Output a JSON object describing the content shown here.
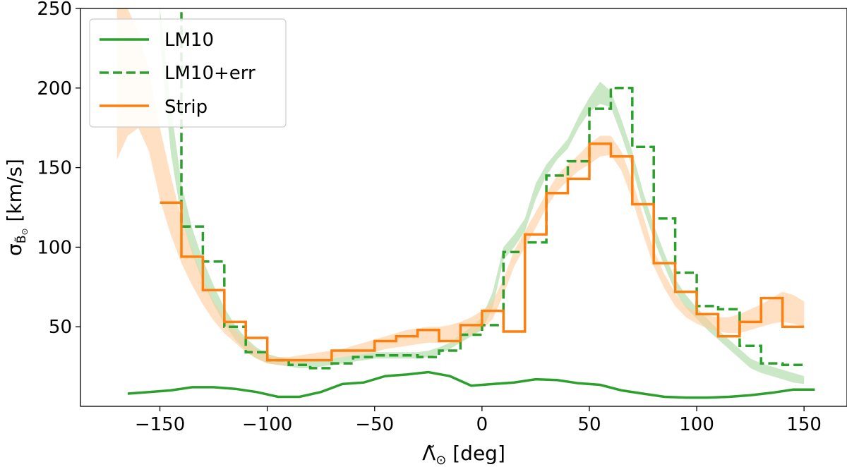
{
  "chart_data": {
    "type": "line",
    "xlabel": "Λ̃",
    "xlabel_sub": "⊙",
    "xlabel_unit": " [deg]",
    "ylabel": "σ",
    "ylabel_sub": "B̃",
    "ylabel_subsub": "⊙",
    "ylabel_unit": " [km/s]",
    "xlim": [
      -187,
      170
    ],
    "ylim": [
      0,
      250
    ],
    "xticks": [
      -150,
      -100,
      -50,
      0,
      50,
      100,
      150
    ],
    "xtick_labels": [
      "−150",
      "−100",
      "−50",
      "0",
      "50",
      "100",
      "150"
    ],
    "yticks": [
      50,
      100,
      150,
      200,
      250
    ],
    "ytick_labels": [
      "50",
      "100",
      "150",
      "200",
      "250"
    ],
    "legend_position": "top-left",
    "legend": [
      {
        "label": "LM10",
        "color": "#2ca02c",
        "style": "solid"
      },
      {
        "label": "LM10+err",
        "color": "#2ca02c",
        "style": "dashed"
      },
      {
        "label": "Strip",
        "color": "#ff7f0e",
        "style": "solid"
      }
    ],
    "colors": {
      "green": "#2ca02c",
      "orange": "#ff7f0e",
      "green_band": "#a8d8a0",
      "orange_band": "#ffcc99"
    },
    "series": [
      {
        "name": "LM10",
        "kind": "line",
        "x": [
          -165,
          -155,
          -145,
          -135,
          -125,
          -115,
          -105,
          -95,
          -85,
          -75,
          -65,
          -55,
          -45,
          -35,
          -25,
          -15,
          -5,
          5,
          15,
          25,
          35,
          45,
          55,
          65,
          75,
          85,
          95,
          105,
          115,
          125,
          135,
          145,
          155
        ],
        "y": [
          8,
          9,
          10,
          12,
          12,
          11,
          9,
          6,
          6,
          9,
          14,
          15,
          19,
          20,
          21.5,
          19,
          13,
          14,
          15,
          17,
          16.5,
          14.5,
          13.5,
          10,
          8,
          6,
          5.5,
          5.5,
          6,
          7,
          8.5,
          10.5,
          10.5
        ]
      },
      {
        "name": "LM10+err",
        "kind": "step",
        "edges": [
          -150,
          -140,
          -130,
          -120,
          -110,
          -100,
          -90,
          -80,
          -70,
          -60,
          -50,
          -40,
          -30,
          -20,
          -10,
          0,
          10,
          20,
          30,
          40,
          50,
          60,
          70,
          80,
          90,
          100,
          110,
          120,
          130,
          140,
          150
        ],
        "values": [
          251,
          113,
          91,
          50,
          34,
          29,
          26,
          24,
          27,
          31,
          32,
          32,
          31,
          35,
          45,
          51,
          97,
          103,
          145,
          154,
          187,
          200,
          163,
          118,
          84,
          63,
          61,
          38,
          27,
          26
        ]
      },
      {
        "name": "Strip",
        "kind": "step",
        "edges": [
          -150,
          -140,
          -130,
          -120,
          -110,
          -100,
          -90,
          -80,
          -70,
          -60,
          -50,
          -40,
          -30,
          -20,
          -10,
          0,
          10,
          20,
          30,
          40,
          50,
          60,
          70,
          80,
          90,
          100,
          110,
          120,
          130,
          140,
          150
        ],
        "values": [
          128,
          94,
          73,
          53,
          43,
          29,
          29,
          29,
          35,
          35,
          41,
          44,
          48,
          41,
          51,
          60,
          47,
          108,
          134,
          143,
          165,
          157,
          127,
          90,
          72,
          58,
          44,
          53,
          68,
          50
        ]
      }
    ],
    "bands": [
      {
        "name": "LM10+err model band",
        "color": "#a8d8a0",
        "x": [
          -150,
          -145,
          -140,
          -135,
          -130,
          -125,
          -120,
          -115,
          -110,
          -105,
          -100,
          -95,
          -90,
          -85,
          -80,
          -75,
          -70,
          -65,
          -60,
          -55,
          -50,
          -45,
          -40,
          -35,
          -30,
          -25,
          -20,
          -15,
          -10,
          -5,
          0,
          5,
          10,
          15,
          20,
          25,
          30,
          35,
          40,
          45,
          50,
          55,
          60,
          65,
          70,
          75,
          80,
          85,
          90,
          95,
          100,
          105,
          110,
          115,
          120,
          125,
          130,
          135,
          140,
          145,
          150
        ],
        "lo": [
          230,
          160,
          118,
          96,
          78,
          64,
          52,
          42,
          35,
          30,
          27,
          26,
          25,
          24,
          24,
          25,
          26,
          27,
          28,
          29,
          30,
          30,
          30,
          30,
          30,
          31,
          33,
          36,
          40,
          44,
          48,
          62,
          92,
          100,
          110,
          130,
          145,
          155,
          162,
          175,
          185,
          190,
          188,
          170,
          150,
          125,
          105,
          88,
          72,
          62,
          55,
          48,
          42,
          36,
          30,
          24,
          21,
          19,
          17,
          15,
          14
        ],
        "hi": [
          250,
          190,
          140,
          112,
          92,
          76,
          62,
          51,
          43,
          37,
          33,
          31,
          30,
          29,
          29,
          29,
          30,
          31,
          32,
          33,
          34,
          34,
          34,
          34,
          34,
          35,
          37,
          40,
          45,
          50,
          56,
          72,
          100,
          108,
          118,
          140,
          152,
          160,
          168,
          182,
          194,
          204,
          198,
          180,
          160,
          135,
          114,
          96,
          80,
          70,
          62,
          55,
          48,
          42,
          36,
          30,
          27,
          25,
          23,
          21,
          19
        ]
      },
      {
        "name": "Strip model band",
        "color": "#ffcc99",
        "x": [
          -170,
          -165,
          -160,
          -155,
          -150,
          -145,
          -140,
          -135,
          -130,
          -125,
          -120,
          -115,
          -110,
          -105,
          -100,
          -95,
          -90,
          -85,
          -80,
          -75,
          -70,
          -65,
          -60,
          -55,
          -50,
          -45,
          -40,
          -35,
          -30,
          -25,
          -20,
          -15,
          -10,
          -5,
          0,
          5,
          10,
          15,
          20,
          25,
          30,
          35,
          40,
          45,
          50,
          55,
          60,
          65,
          70,
          75,
          80,
          85,
          90,
          95,
          100,
          105,
          110,
          115,
          120,
          125,
          130,
          135,
          140,
          145,
          150
        ],
        "lo": [
          155,
          170,
          175,
          160,
          130,
          108,
          90,
          76,
          64,
          54,
          46,
          40,
          34,
          30,
          27,
          26,
          26,
          27,
          28,
          29,
          30,
          31,
          32,
          33,
          34,
          36,
          37,
          38,
          39,
          40,
          40,
          41,
          43,
          45,
          48,
          55,
          70,
          88,
          100,
          112,
          125,
          135,
          142,
          148,
          152,
          157,
          158,
          148,
          130,
          108,
          88,
          74,
          63,
          56,
          52,
          49,
          47,
          46,
          46,
          48,
          50,
          52,
          53,
          52,
          50
        ],
        "hi": [
          250,
          250,
          235,
          210,
          175,
          145,
          118,
          98,
          80,
          66,
          56,
          48,
          41,
          36,
          32,
          31,
          31,
          32,
          33,
          34,
          35,
          36,
          38,
          40,
          42,
          44,
          46,
          48,
          49,
          50,
          50,
          51,
          53,
          56,
          60,
          66,
          80,
          98,
          110,
          122,
          134,
          145,
          152,
          158,
          165,
          170,
          170,
          160,
          142,
          120,
          98,
          83,
          71,
          63,
          59,
          57,
          56,
          56,
          58,
          61,
          64,
          68,
          72,
          70,
          66
        ]
      }
    ]
  }
}
